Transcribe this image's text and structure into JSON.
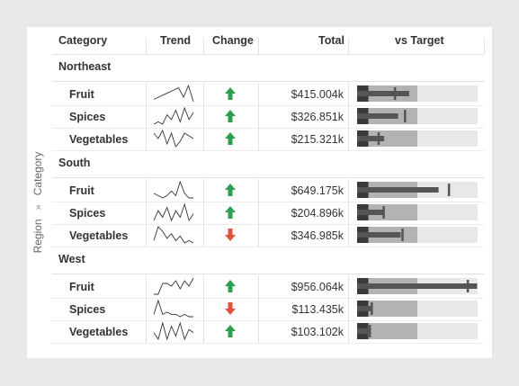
{
  "axis_label": {
    "outer": "Region",
    "separator": "»",
    "inner": "Category"
  },
  "columns": [
    "Category",
    "Trend",
    "Change",
    "Total",
    "vs Target"
  ],
  "colors": {
    "up": "#2e9e4f",
    "down": "#e0533d",
    "bar": "#555555",
    "band_dark": "#3a3a3a",
    "band_mid": "#b3b3b3",
    "band_light": "#e8e8e8"
  },
  "chart_data": {
    "type": "table",
    "groups": [
      {
        "name": "Northeast",
        "rows": [
          {
            "category": "Fruit",
            "trend": [
              3,
              4,
              5,
              6,
              7,
              8,
              4,
              9,
              2
            ],
            "change": "up",
            "total": "$415.004k",
            "actual": 415.004,
            "target": 300
          },
          {
            "category": "Spices",
            "trend": [
              1,
              2,
              1,
              5,
              3,
              7,
              2,
              8,
              3,
              6
            ],
            "change": "up",
            "total": "$326.851k",
            "actual": 326.851,
            "target": 380
          },
          {
            "category": "Vegetables",
            "trend": [
              6,
              4,
              7,
              2,
              6,
              1,
              3,
              6,
              5,
              4
            ],
            "change": "up",
            "total": "$215.321k",
            "actual": 215.321,
            "target": 170
          }
        ]
      },
      {
        "name": "South",
        "rows": [
          {
            "category": "Fruit",
            "trend": [
              3,
              2,
              1,
              2,
              4,
              2,
              8,
              3,
              1,
              1
            ],
            "change": "up",
            "total": "$649.175k",
            "actual": 649.175,
            "target": 730
          },
          {
            "category": "Spices",
            "trend": [
              2,
              5,
              3,
              6,
              2,
              5,
              3,
              7,
              2,
              4
            ],
            "change": "up",
            "total": "$204.896k",
            "actual": 204.896,
            "target": 210
          },
          {
            "category": "Vegetables",
            "trend": [
              2,
              8,
              6,
              3,
              5,
              2,
              4,
              1,
              2,
              1
            ],
            "change": "down",
            "total": "$346.985k",
            "actual": 346.985,
            "target": 360
          }
        ]
      },
      {
        "name": "West",
        "rows": [
          {
            "category": "Fruit",
            "trend": [
              1,
              1,
              5,
              5,
              4,
              6,
              3,
              6,
              4,
              7
            ],
            "change": "up",
            "total": "$956.064k",
            "actual": 956.064,
            "target": 880
          },
          {
            "category": "Spices",
            "trend": [
              2,
              8,
              2,
              3,
              2,
              2,
              1,
              2,
              1,
              1
            ],
            "change": "down",
            "total": "$113.435k",
            "actual": 113.435,
            "target": 115
          },
          {
            "category": "Vegetables",
            "trend": [
              4,
              2,
              7,
              2,
              6,
              3,
              7,
              2,
              5,
              4
            ],
            "change": "up",
            "total": "$103.102k",
            "actual": 103.102,
            "target": 100
          }
        ]
      }
    ],
    "bullet_max": 960,
    "bullet_bands": [
      90,
      480,
      960
    ]
  }
}
